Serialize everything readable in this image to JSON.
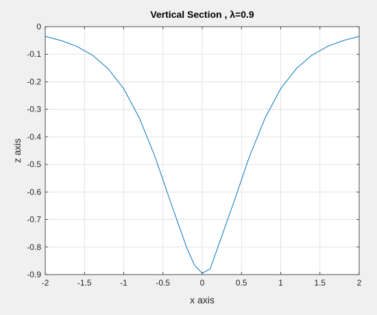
{
  "chart_data": {
    "type": "line",
    "title": "Vertical Section , λ=0.9",
    "xlabel": "x axis",
    "ylabel": "z axis",
    "xlim": [
      -2,
      2
    ],
    "ylim": [
      -0.9,
      0
    ],
    "grid": true,
    "x_ticks": [
      -2,
      -1.5,
      -1,
      -0.5,
      0,
      0.5,
      1,
      1.5,
      2
    ],
    "x_tick_labels": [
      "-2",
      "-1.5",
      "-1",
      "-0.5",
      "0",
      "0.5",
      "1",
      "1.5",
      "2"
    ],
    "y_ticks": [
      0,
      -0.1,
      -0.2,
      -0.3,
      -0.4,
      -0.5,
      -0.6,
      -0.7,
      -0.8,
      -0.9
    ],
    "y_tick_labels": [
      "0",
      "-0.1",
      "-0.2",
      "-0.3",
      "-0.4",
      "-0.5",
      "-0.6",
      "-0.7",
      "-0.8",
      "-0.9"
    ],
    "series": [
      {
        "color": "#0072bd",
        "x": [
          -2,
          -1.8,
          -1.6,
          -1.4,
          -1.2,
          -1.0,
          -0.8,
          -0.6,
          -0.4,
          -0.2,
          -0.1,
          0,
          0.1,
          0.2,
          0.4,
          0.6,
          0.8,
          1.0,
          1.2,
          1.4,
          1.6,
          1.8,
          2
        ],
        "y": [
          -0.035,
          -0.05,
          -0.071,
          -0.103,
          -0.152,
          -0.225,
          -0.332,
          -0.473,
          -0.639,
          -0.8,
          -0.865,
          -0.895,
          -0.88,
          -0.8,
          -0.639,
          -0.473,
          -0.332,
          -0.225,
          -0.152,
          -0.103,
          -0.071,
          -0.05,
          -0.035
        ]
      }
    ]
  }
}
